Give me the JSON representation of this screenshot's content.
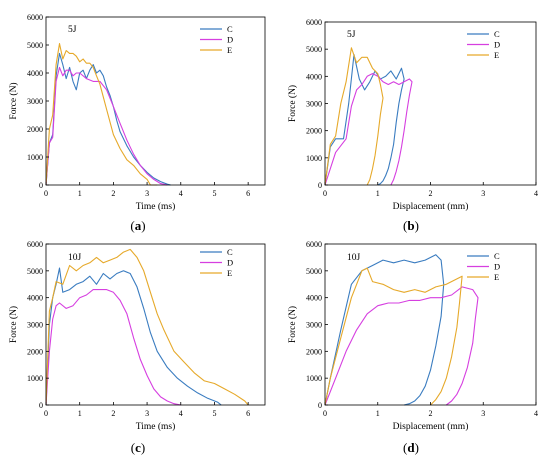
{
  "colors": {
    "C": "#3a7cc0",
    "D": "#d63fe0",
    "E": "#e6a92a"
  },
  "chart_data": [
    {
      "type": "line",
      "panel": "(a)",
      "annotation": "5J",
      "xlabel": "Time (ms)",
      "ylabel": "Force (N)",
      "xlim": [
        0,
        6.5
      ],
      "ylim": [
        0,
        6000
      ],
      "xticks": [
        0,
        1,
        2,
        3,
        4,
        5,
        6
      ],
      "yticks": [
        0,
        1000,
        2000,
        3000,
        4000,
        5000,
        6000
      ],
      "legend": "top-right",
      "series": [
        {
          "name": "C",
          "x": [
            0,
            0.1,
            0.2,
            0.3,
            0.4,
            0.5,
            0.6,
            0.7,
            0.8,
            0.9,
            1.0,
            1.1,
            1.2,
            1.3,
            1.4,
            1.5,
            1.6,
            1.7,
            1.8,
            1.9,
            2.0,
            2.1,
            2.2,
            2.4,
            2.6,
            2.8,
            3.0,
            3.2,
            3.4,
            3.6,
            3.7
          ],
          "y": [
            0,
            1500,
            1800,
            3900,
            4700,
            4300,
            3800,
            4200,
            3700,
            3400,
            4000,
            4100,
            3800,
            4100,
            4300,
            4000,
            4100,
            3900,
            3500,
            3200,
            2800,
            2300,
            1900,
            1400,
            1000,
            700,
            450,
            250,
            120,
            30,
            0
          ]
        },
        {
          "name": "D",
          "x": [
            0,
            0.1,
            0.2,
            0.3,
            0.4,
            0.5,
            0.6,
            0.7,
            0.8,
            0.9,
            1.0,
            1.2,
            1.4,
            1.6,
            1.8,
            2.0,
            2.2,
            2.4,
            2.6,
            2.8,
            3.0,
            3.2,
            3.4,
            3.6
          ],
          "y": [
            0,
            1500,
            1700,
            3700,
            4200,
            3900,
            4100,
            4100,
            3900,
            4000,
            4000,
            3800,
            3700,
            3700,
            3400,
            2800,
            2200,
            1600,
            1100,
            700,
            400,
            200,
            50,
            0
          ]
        },
        {
          "name": "E",
          "x": [
            0,
            0.1,
            0.2,
            0.3,
            0.4,
            0.5,
            0.6,
            0.7,
            0.8,
            0.9,
            1.0,
            1.1,
            1.2,
            1.3,
            1.4,
            1.5,
            1.6,
            1.8,
            2.0,
            2.2,
            2.4,
            2.6,
            2.8,
            3.0,
            3.1,
            3.3
          ],
          "y": [
            0,
            2000,
            2500,
            4300,
            5050,
            4500,
            4800,
            4700,
            4700,
            4600,
            4400,
            4500,
            4350,
            4350,
            4200,
            3900,
            3600,
            2700,
            1800,
            1300,
            900,
            700,
            400,
            200,
            0,
            0
          ]
        }
      ]
    },
    {
      "type": "line",
      "panel": "(b)",
      "annotation": "5J",
      "xlabel": "Displacement (mm)",
      "ylabel": "Force (N)",
      "xlim": [
        0,
        4
      ],
      "ylim": [
        0,
        6000
      ],
      "xticks": [
        0,
        1,
        2,
        3,
        4
      ],
      "yticks": [
        0,
        1000,
        2000,
        3000,
        4000,
        5000,
        6000
      ],
      "legend": "top-right",
      "series": [
        {
          "name": "C",
          "x": [
            0,
            0.1,
            0.2,
            0.35,
            0.45,
            0.55,
            0.65,
            0.75,
            0.85,
            0.95,
            1.05,
            1.15,
            1.25,
            1.35,
            1.45,
            1.5,
            1.45,
            1.4,
            1.35,
            1.3,
            1.25,
            1.2,
            1.15,
            1.1,
            1.05,
            1.0
          ],
          "y": [
            0,
            1400,
            1700,
            1700,
            3000,
            4800,
            3900,
            3500,
            3800,
            4200,
            3900,
            4000,
            4200,
            3900,
            4300,
            3900,
            3500,
            3000,
            2300,
            1500,
            1000,
            600,
            350,
            150,
            50,
            0
          ]
        },
        {
          "name": "D",
          "x": [
            0,
            0.2,
            0.4,
            0.5,
            0.6,
            0.7,
            0.8,
            0.9,
            1.0,
            1.1,
            1.2,
            1.3,
            1.4,
            1.5,
            1.6,
            1.65,
            1.6,
            1.55,
            1.5,
            1.45,
            1.4,
            1.35,
            1.3,
            1.25
          ],
          "y": [
            0,
            1200,
            1700,
            2900,
            3500,
            3700,
            4000,
            4100,
            4000,
            3800,
            3700,
            3800,
            3700,
            3800,
            3900,
            3800,
            3300,
            2700,
            2000,
            1400,
            900,
            500,
            200,
            0
          ]
        },
        {
          "name": "E",
          "x": [
            0,
            0.1,
            0.2,
            0.3,
            0.4,
            0.5,
            0.6,
            0.7,
            0.8,
            0.9,
            1.0,
            1.05,
            1.1,
            1.05,
            1.0,
            0.95,
            0.9,
            0.85,
            0.8
          ],
          "y": [
            0,
            1500,
            1800,
            3000,
            3800,
            5050,
            4500,
            4700,
            4700,
            4300,
            4100,
            3700,
            3200,
            2600,
            1800,
            1100,
            600,
            200,
            0
          ]
        }
      ]
    },
    {
      "type": "line",
      "panel": "(c)",
      "annotation": "10J",
      "xlabel": "Time (ms)",
      "ylabel": "Force (N)",
      "xlim": [
        0,
        6.5
      ],
      "ylim": [
        0,
        6000
      ],
      "xticks": [
        0,
        1,
        2,
        3,
        4,
        5,
        6
      ],
      "yticks": [
        0,
        1000,
        2000,
        3000,
        4000,
        5000,
        6000
      ],
      "legend": "top-right",
      "series": [
        {
          "name": "C",
          "x": [
            0,
            0.1,
            0.2,
            0.3,
            0.4,
            0.5,
            0.7,
            0.9,
            1.1,
            1.3,
            1.5,
            1.7,
            1.9,
            2.1,
            2.3,
            2.5,
            2.7,
            2.9,
            3.1,
            3.3,
            3.6,
            3.9,
            4.2,
            4.5,
            4.8,
            5.1,
            5.2
          ],
          "y": [
            0,
            3000,
            4000,
            4500,
            5100,
            4200,
            4300,
            4500,
            4600,
            4800,
            4500,
            4900,
            4700,
            4900,
            5000,
            4900,
            4400,
            3600,
            2700,
            2000,
            1400,
            1000,
            700,
            450,
            250,
            100,
            0
          ]
        },
        {
          "name": "D",
          "x": [
            0,
            0.1,
            0.2,
            0.3,
            0.4,
            0.6,
            0.8,
            1.0,
            1.2,
            1.4,
            1.6,
            1.8,
            2.0,
            2.2,
            2.4,
            2.6,
            2.8,
            3.0,
            3.2,
            3.4,
            3.6,
            3.8,
            4.0
          ],
          "y": [
            0,
            2000,
            3200,
            3700,
            3800,
            3600,
            3700,
            4000,
            4100,
            4300,
            4300,
            4300,
            4200,
            3900,
            3400,
            2500,
            1700,
            1100,
            600,
            300,
            150,
            50,
            0
          ]
        },
        {
          "name": "E",
          "x": [
            0,
            0.1,
            0.2,
            0.3,
            0.5,
            0.7,
            0.9,
            1.1,
            1.3,
            1.5,
            1.7,
            1.9,
            2.1,
            2.3,
            2.5,
            2.7,
            2.9,
            3.1,
            3.3,
            3.5,
            3.8,
            4.1,
            4.4,
            4.7,
            5.0,
            5.3,
            5.6,
            5.9,
            6.0
          ],
          "y": [
            0,
            3500,
            4000,
            4600,
            4500,
            5200,
            5000,
            5200,
            5300,
            5500,
            5300,
            5400,
            5500,
            5700,
            5800,
            5500,
            5000,
            4200,
            3400,
            2800,
            2000,
            1600,
            1200,
            900,
            800,
            600,
            400,
            150,
            0
          ]
        }
      ]
    },
    {
      "type": "line",
      "panel": "(d)",
      "annotation": "10J",
      "xlabel": "Displacement (mm)",
      "ylabel": "Force (N)",
      "xlim": [
        0,
        4
      ],
      "ylim": [
        0,
        6000
      ],
      "xticks": [
        0,
        1,
        2,
        3,
        4
      ],
      "yticks": [
        0,
        1000,
        2000,
        3000,
        4000,
        5000,
        6000
      ],
      "legend": "top-right",
      "series": [
        {
          "name": "C",
          "x": [
            0,
            0.1,
            0.3,
            0.5,
            0.7,
            0.9,
            1.1,
            1.3,
            1.5,
            1.7,
            1.9,
            2.1,
            2.2,
            2.25,
            2.2,
            2.1,
            2.0,
            1.9,
            1.8,
            1.7,
            1.6,
            1.5
          ],
          "y": [
            0,
            1000,
            2800,
            4500,
            5000,
            5200,
            5400,
            5300,
            5400,
            5300,
            5400,
            5600,
            5400,
            4500,
            3300,
            2200,
            1300,
            700,
            350,
            150,
            50,
            0
          ]
        },
        {
          "name": "D",
          "x": [
            0,
            0.2,
            0.4,
            0.6,
            0.8,
            1.0,
            1.2,
            1.4,
            1.6,
            1.8,
            2.0,
            2.2,
            2.4,
            2.6,
            2.8,
            2.9,
            2.85,
            2.8,
            2.7,
            2.6,
            2.5,
            2.4,
            2.3
          ],
          "y": [
            0,
            1000,
            2000,
            2800,
            3400,
            3700,
            3800,
            3800,
            3900,
            3900,
            4000,
            4000,
            4100,
            4400,
            4300,
            4000,
            3200,
            2300,
            1400,
            800,
            400,
            150,
            0
          ]
        },
        {
          "name": "E",
          "x": [
            0,
            0.1,
            0.3,
            0.5,
            0.7,
            0.8,
            0.9,
            1.1,
            1.3,
            1.5,
            1.7,
            1.9,
            2.1,
            2.3,
            2.5,
            2.6,
            2.55,
            2.5,
            2.4,
            2.3,
            2.2,
            2.1,
            2.0
          ],
          "y": [
            0,
            1000,
            2500,
            4000,
            5000,
            5100,
            4600,
            4500,
            4300,
            4200,
            4300,
            4200,
            4400,
            4500,
            4700,
            4800,
            3800,
            2900,
            1800,
            1000,
            500,
            200,
            0
          ]
        }
      ]
    }
  ],
  "captions": [
    {
      "pre": "(",
      "letter": "a",
      "post": ")"
    },
    {
      "pre": "(",
      "letter": "b",
      "post": ")"
    },
    {
      "pre": "(",
      "letter": "c",
      "post": ")"
    },
    {
      "pre": "(",
      "letter": "d",
      "post": ")"
    }
  ]
}
